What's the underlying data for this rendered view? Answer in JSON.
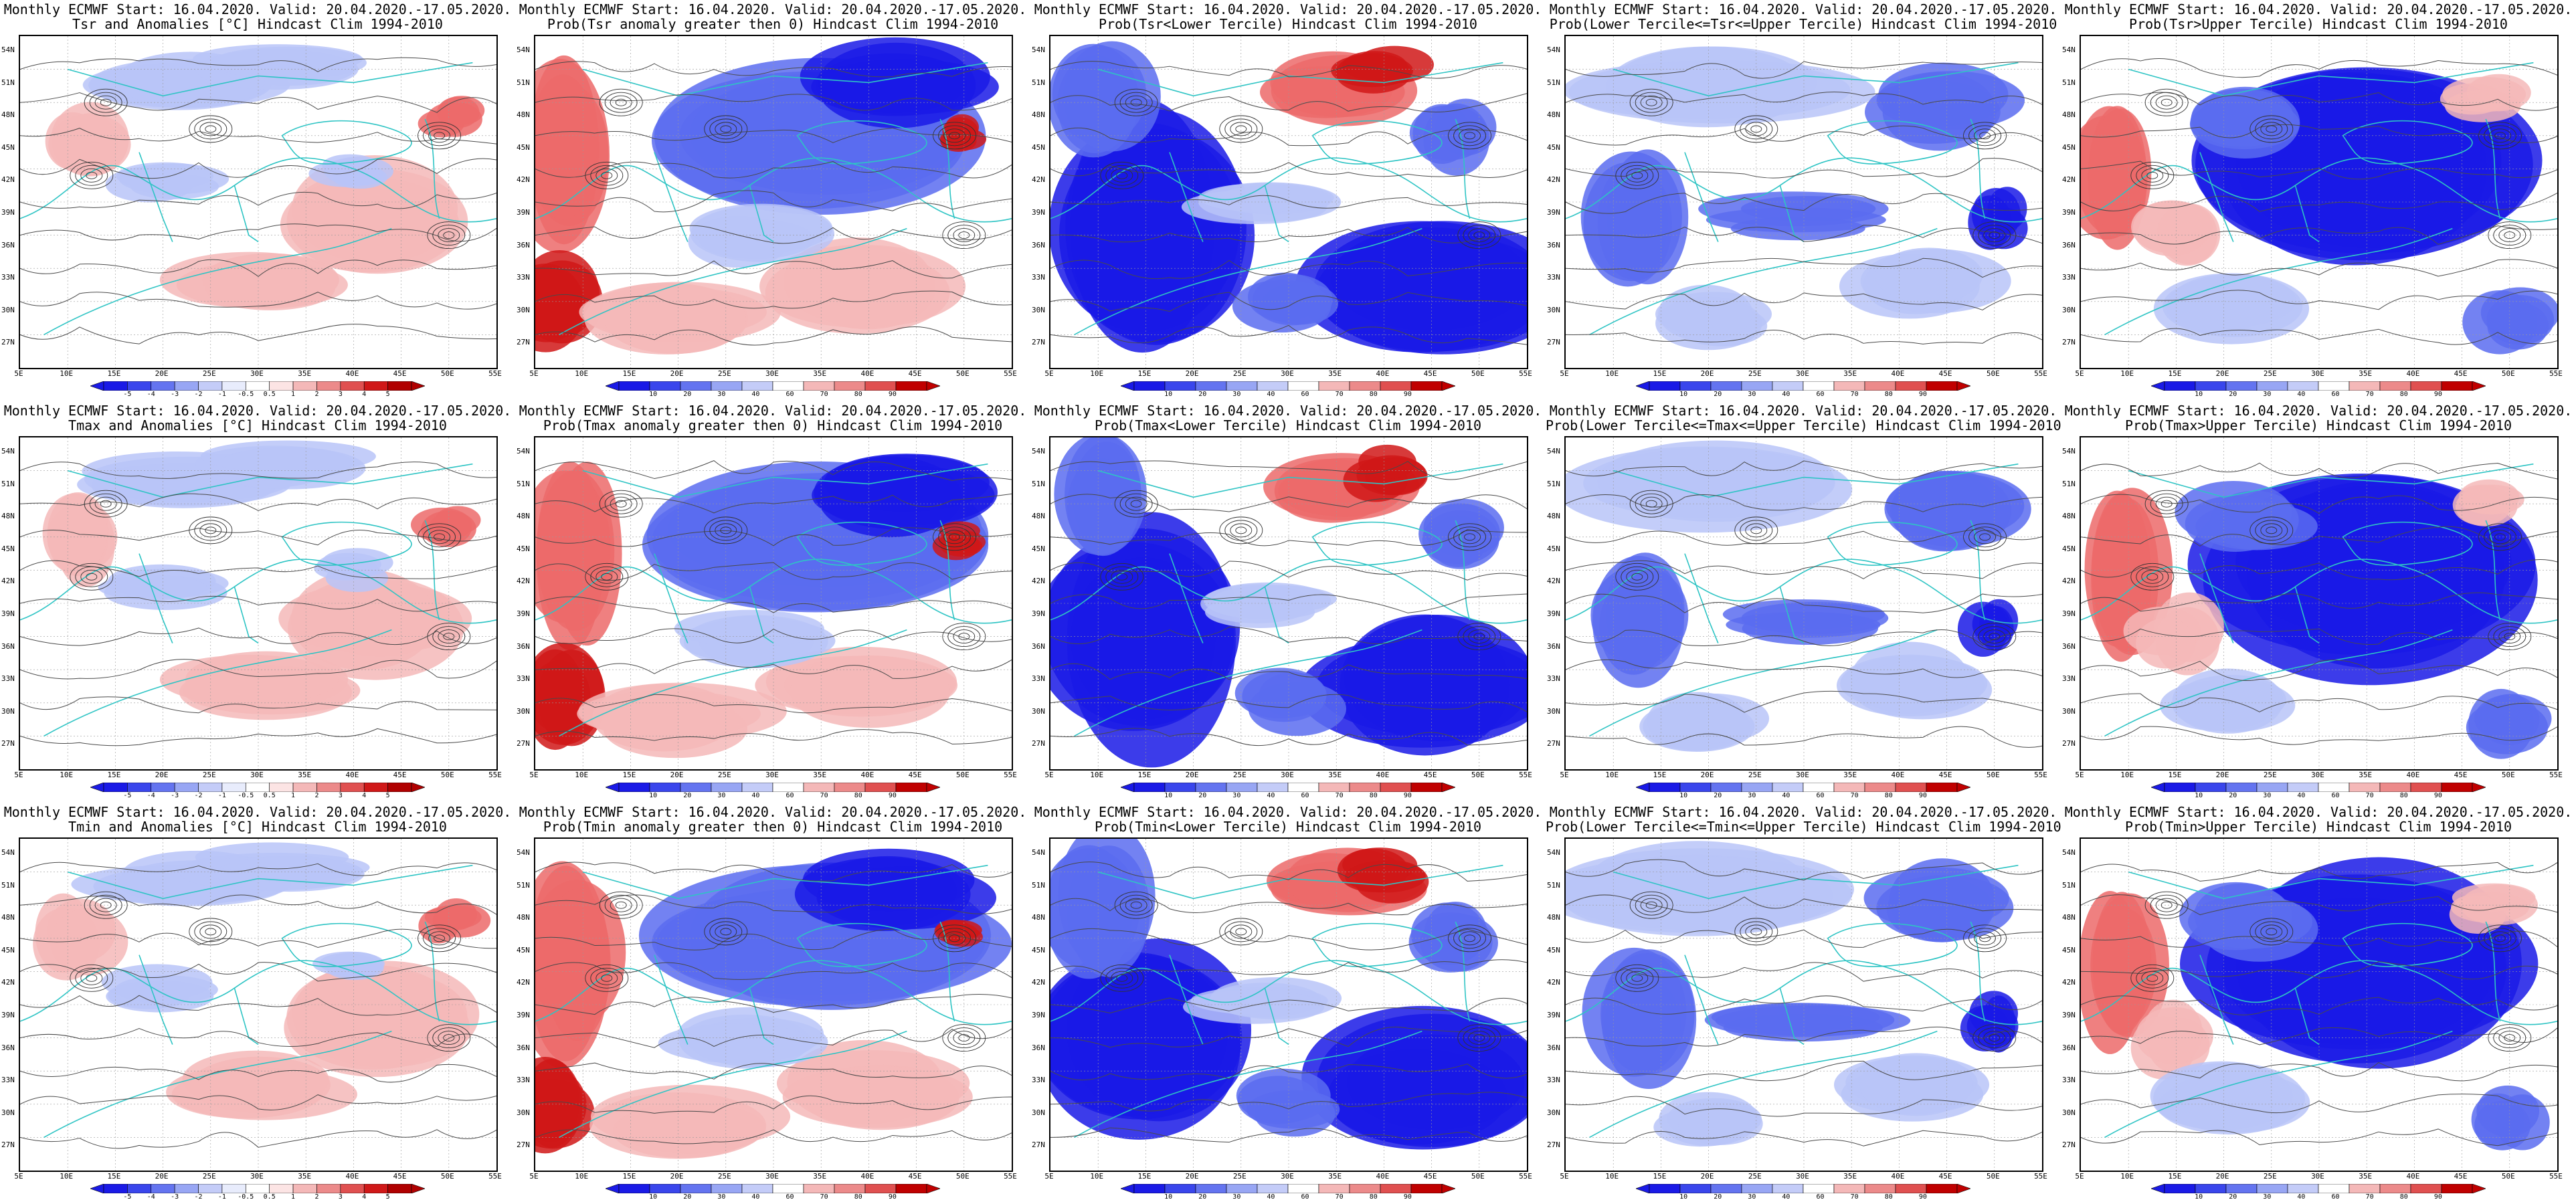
{
  "lat_labels": [
    "54N",
    "51N",
    "48N",
    "45N",
    "42N",
    "39N",
    "36N",
    "33N",
    "30N",
    "27N"
  ],
  "lon_labels": [
    "5E",
    "10E",
    "15E",
    "20E",
    "25E",
    "30E",
    "35E",
    "40E",
    "45E",
    "50E",
    "55E"
  ],
  "colors": {
    "contour_land": "#4a4a4a",
    "coast": "#2ec4c4",
    "deep_blue": "#1a1ae6",
    "mid_blue": "#5a6cf0",
    "light_blue": "#b8c4f8",
    "light_red": "#f4b8b8",
    "mid_red": "#ec6a6a",
    "deep_red": "#d01818"
  },
  "colorbars": {
    "anom": [
      "-5",
      "-4",
      "-3",
      "-2",
      "-1",
      "-0.5",
      "0.5",
      "1",
      "2",
      "3",
      "4",
      "5"
    ],
    "prob": [
      "10",
      "20",
      "30",
      "40",
      "60",
      "70",
      "80",
      "90"
    ]
  },
  "panels": [
    {
      "line1": "Monthly ECMWF Start: 16.04.2020. Valid: 20.04.2020.-17.05.2020.",
      "line2": "Tsr and Anomalies [°C] Hindcast Clim 1994-2010",
      "bar": "anom",
      "kind": "anom"
    },
    {
      "line1": "Monthly ECMWF Start: 16.04.2020. Valid: 20.04.2020.-17.05.2020.",
      "line2": "Prob(Tsr anomaly greater then 0) Hindcast Clim 1994-2010",
      "bar": "prob",
      "kind": "pos"
    },
    {
      "line1": "Monthly ECMWF Start: 16.04.2020. Valid: 20.04.2020.-17.05.2020.",
      "line2": "Prob(Tsr<Lower Tercile) Hindcast Clim 1994-2010",
      "bar": "prob",
      "kind": "low"
    },
    {
      "line1": "Monthly ECMWF Start: 16.04.2020. Valid: 20.04.2020.-17.05.2020.",
      "line2": "Prob(Lower Tercile<=Tsr<=Upper Tercile) Hindcast Clim 1994-2010",
      "bar": "prob",
      "kind": "mid"
    },
    {
      "line1": "Monthly ECMWF Start: 16.04.2020. Valid: 20.04.2020.-17.05.2020.",
      "line2": "Prob(Tsr>Upper Tercile) Hindcast Clim 1994-2010",
      "bar": "prob",
      "kind": "up"
    },
    {
      "line1": "Monthly ECMWF Start: 16.04.2020. Valid: 20.04.2020.-17.05.2020.",
      "line2": "Tmax and Anomalies [°C] Hindcast Clim 1994-2010",
      "bar": "anom",
      "kind": "anom"
    },
    {
      "line1": "Monthly ECMWF Start: 16.04.2020. Valid: 20.04.2020.-17.05.2020.",
      "line2": "Prob(Tmax anomaly greater then 0) Hindcast Clim 1994-2010",
      "bar": "prob",
      "kind": "pos"
    },
    {
      "line1": "Monthly ECMWF Start: 16.04.2020. Valid: 20.04.2020.-17.05.2020.",
      "line2": "Prob(Tmax<Lower Tercile) Hindcast Clim 1994-2010",
      "bar": "prob",
      "kind": "low"
    },
    {
      "line1": "Monthly ECMWF Start: 16.04.2020. Valid: 20.04.2020.-17.05.2020.",
      "line2": "Prob(Lower Tercile<=Tmax<=Upper Tercile) Hindcast Clim 1994-2010",
      "bar": "prob",
      "kind": "mid"
    },
    {
      "line1": "Monthly ECMWF Start: 16.04.2020. Valid: 20.04.2020.-17.05.2020.",
      "line2": "Prob(Tmax>Upper Tercile) Hindcast Clim 1994-2010",
      "bar": "prob",
      "kind": "up"
    },
    {
      "line1": "Monthly ECMWF Start: 16.04.2020. Valid: 20.04.2020.-17.05.2020.",
      "line2": "Tmin and Anomalies [°C] Hindcast Clim 1994-2010",
      "bar": "anom",
      "kind": "anom"
    },
    {
      "line1": "Monthly ECMWF Start: 16.04.2020. Valid: 20.04.2020.-17.05.2020.",
      "line2": "Prob(Tmin anomaly greater then 0) Hindcast Clim 1994-2010",
      "bar": "prob",
      "kind": "pos"
    },
    {
      "line1": "Monthly ECMWF Start: 16.04.2020. Valid: 20.04.2020.-17.05.2020.",
      "line2": "Prob(Tmin<Lower Tercile) Hindcast Clim 1994-2010",
      "bar": "prob",
      "kind": "low"
    },
    {
      "line1": "Monthly ECMWF Start: 16.04.2020. Valid: 20.04.2020.-17.05.2020.",
      "line2": "Prob(Lower Tercile<=Tmin<=Upper Tercile) Hindcast Clim 1994-2010",
      "bar": "prob",
      "kind": "mid"
    },
    {
      "line1": "Monthly ECMWF Start: 16.04.2020. Valid: 20.04.2020.-17.05.2020.",
      "line2": "Prob(Tmin>Upper Tercile) Hindcast Clim 1994-2010",
      "bar": "prob",
      "kind": "up"
    }
  ]
}
